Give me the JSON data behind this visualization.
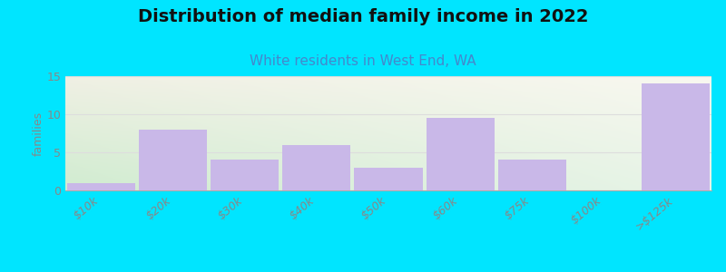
{
  "title": "Distribution of median family income in 2022",
  "subtitle": "White residents in West End, WA",
  "categories": [
    "$10k",
    "$20k",
    "$30k",
    "$40k",
    "$50k",
    "$60k",
    "$75k",
    "$100k",
    ">$125k"
  ],
  "values": [
    1,
    8,
    4,
    6,
    3,
    9.5,
    4,
    0,
    14
  ],
  "bar_color": "#c9b8e8",
  "background_color": "#00e5ff",
  "plot_bg_corners": [
    "#d0ecd0",
    "#d0ecd0",
    "#f8f8ec",
    "#f8f8ec"
  ],
  "title_fontsize": 14,
  "subtitle_fontsize": 11,
  "subtitle_color": "#4488cc",
  "ylabel": "families",
  "ylim": [
    0,
    15
  ],
  "yticks": [
    0,
    5,
    10,
    15
  ],
  "tick_label_color": "#888888",
  "grid_color": "#dddddd",
  "bar_width": 0.95
}
